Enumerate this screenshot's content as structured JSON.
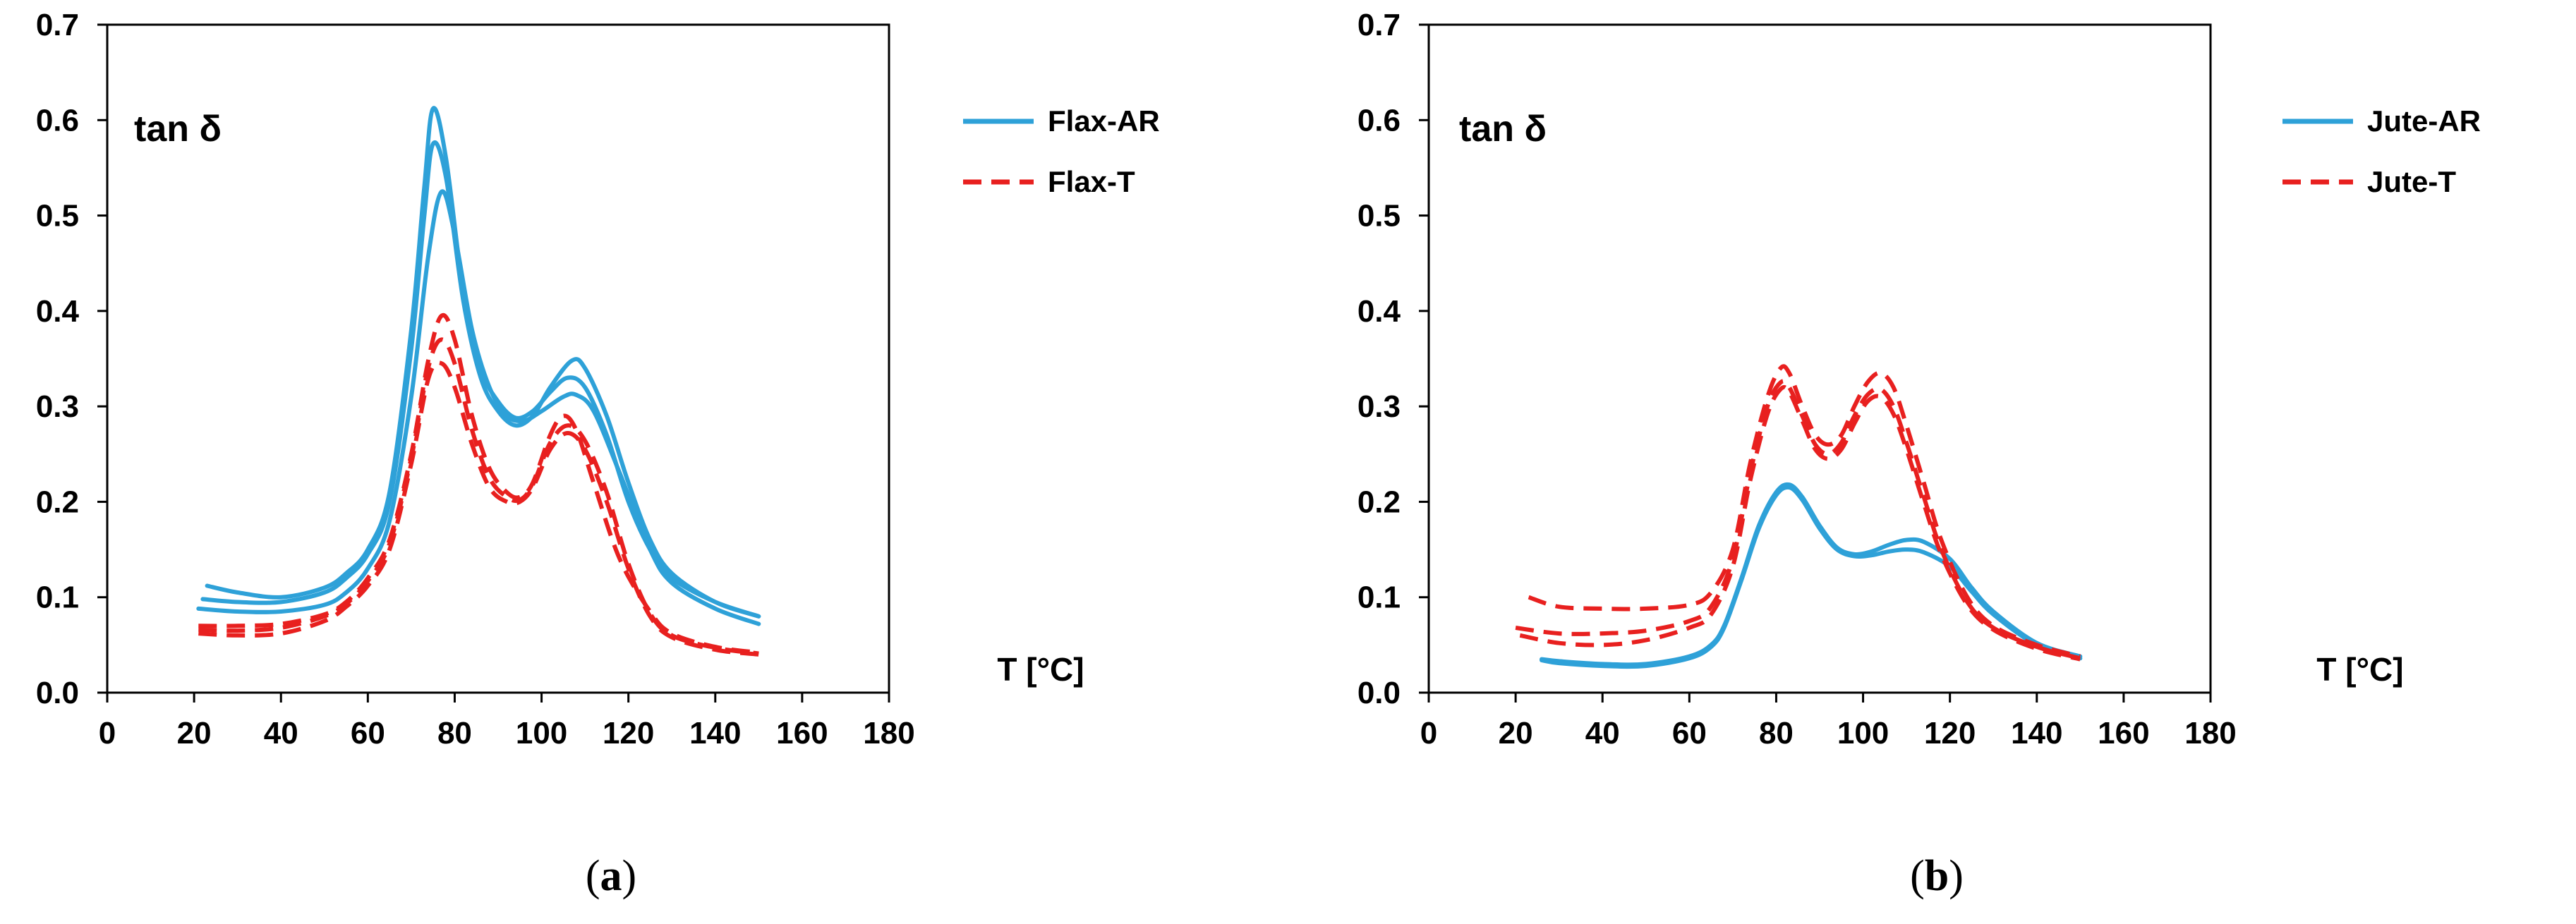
{
  "chart_data": [
    {
      "type": "line",
      "panel_label": "a",
      "ylabel": "tan δ",
      "xlabel": "T [°C]",
      "xlim": [
        0,
        180
      ],
      "ylim": [
        0,
        0.7
      ],
      "xticks": [
        0,
        20,
        40,
        60,
        80,
        100,
        120,
        140,
        160,
        180
      ],
      "yticks": [
        "0.0",
        "0.1",
        "0.2",
        "0.3",
        "0.4",
        "0.5",
        "0.6",
        "0.7"
      ],
      "legend": [
        "Flax-AR",
        "Flax-T"
      ],
      "series": [
        {
          "name": "Flax-AR",
          "color": "#2ea1d8",
          "dash": false,
          "x": [
            23,
            30,
            40,
            50,
            55,
            60,
            65,
            70,
            73,
            75,
            78,
            82,
            86,
            90,
            94,
            98,
            102,
            106,
            110,
            115,
            120,
            125,
            130,
            140,
            150
          ],
          "y": [
            0.112,
            0.105,
            0.1,
            0.11,
            0.125,
            0.15,
            0.21,
            0.38,
            0.53,
            0.612,
            0.56,
            0.42,
            0.34,
            0.305,
            0.288,
            0.295,
            0.315,
            0.33,
            0.32,
            0.27,
            0.2,
            0.15,
            0.12,
            0.095,
            0.08
          ]
        },
        {
          "name": "Flax-AR",
          "color": "#2ea1d8",
          "dash": false,
          "x": [
            22,
            30,
            40,
            50,
            55,
            60,
            65,
            70,
            73,
            75,
            78,
            82,
            86,
            90,
            94,
            98,
            102,
            107,
            110,
            115,
            120,
            125,
            130,
            140,
            150
          ],
          "y": [
            0.098,
            0.095,
            0.095,
            0.105,
            0.12,
            0.145,
            0.2,
            0.36,
            0.5,
            0.575,
            0.54,
            0.41,
            0.33,
            0.295,
            0.28,
            0.29,
            0.32,
            0.348,
            0.34,
            0.29,
            0.22,
            0.16,
            0.125,
            0.095,
            0.08
          ]
        },
        {
          "name": "Flax-AR",
          "color": "#2ea1d8",
          "dash": false,
          "x": [
            21,
            30,
            40,
            50,
            55,
            60,
            65,
            70,
            74,
            77,
            80,
            84,
            88,
            92,
            96,
            100,
            105,
            108,
            112,
            118,
            125,
            130,
            140,
            150
          ],
          "y": [
            0.088,
            0.085,
            0.085,
            0.092,
            0.105,
            0.13,
            0.18,
            0.31,
            0.46,
            0.525,
            0.48,
            0.38,
            0.32,
            0.29,
            0.285,
            0.295,
            0.31,
            0.312,
            0.295,
            0.23,
            0.15,
            0.115,
            0.088,
            0.072
          ]
        },
        {
          "name": "Flax-T",
          "color": "#e8201f",
          "dash": true,
          "x": [
            21,
            30,
            40,
            50,
            55,
            60,
            65,
            70,
            74,
            77,
            80,
            84,
            88,
            92,
            95,
            98,
            102,
            105,
            108,
            112,
            118,
            125,
            130,
            140,
            150
          ],
          "y": [
            0.07,
            0.07,
            0.072,
            0.082,
            0.095,
            0.12,
            0.16,
            0.25,
            0.35,
            0.395,
            0.37,
            0.29,
            0.235,
            0.21,
            0.205,
            0.22,
            0.27,
            0.29,
            0.275,
            0.22,
            0.14,
            0.085,
            0.062,
            0.048,
            0.042
          ]
        },
        {
          "name": "Flax-T",
          "color": "#e8201f",
          "dash": true,
          "x": [
            21,
            30,
            40,
            50,
            55,
            60,
            65,
            70,
            74,
            77,
            80,
            84,
            88,
            92,
            95,
            98,
            102,
            106,
            110,
            115,
            120,
            125,
            130,
            140,
            150
          ],
          "y": [
            0.062,
            0.06,
            0.062,
            0.075,
            0.09,
            0.112,
            0.15,
            0.24,
            0.33,
            0.345,
            0.32,
            0.26,
            0.215,
            0.2,
            0.2,
            0.215,
            0.255,
            0.272,
            0.255,
            0.2,
            0.13,
            0.08,
            0.058,
            0.045,
            0.04
          ]
        },
        {
          "name": "Flax-T",
          "color": "#e8201f",
          "dash": true,
          "x": [
            21,
            30,
            40,
            50,
            55,
            60,
            65,
            70,
            74,
            77,
            80,
            84,
            88,
            92,
            95,
            98,
            102,
            106,
            110,
            115,
            120,
            125,
            130,
            140,
            150
          ],
          "y": [
            0.066,
            0.065,
            0.068,
            0.08,
            0.093,
            0.117,
            0.156,
            0.246,
            0.342,
            0.37,
            0.345,
            0.275,
            0.225,
            0.205,
            0.202,
            0.218,
            0.262,
            0.28,
            0.264,
            0.21,
            0.135,
            0.083,
            0.06,
            0.047,
            0.041
          ]
        }
      ]
    },
    {
      "type": "line",
      "panel_label": "b",
      "ylabel": "tan δ",
      "xlabel": "T [°C]",
      "xlim": [
        0,
        180
      ],
      "ylim": [
        0,
        0.7
      ],
      "xticks": [
        0,
        20,
        40,
        60,
        80,
        100,
        120,
        140,
        160,
        180
      ],
      "yticks": [
        "0.0",
        "0.1",
        "0.2",
        "0.3",
        "0.4",
        "0.5",
        "0.6",
        "0.7"
      ],
      "legend": [
        "Jute-AR",
        "Jute-T"
      ],
      "series": [
        {
          "name": "Jute-AR",
          "color": "#2ea1d8",
          "dash": false,
          "x": [
            26,
            30,
            40,
            50,
            60,
            65,
            68,
            72,
            76,
            80,
            83,
            86,
            90,
            94,
            98,
            102,
            106,
            110,
            114,
            120,
            125,
            130,
            140,
            150
          ],
          "y": [
            0.035,
            0.033,
            0.03,
            0.03,
            0.038,
            0.05,
            0.07,
            0.12,
            0.175,
            0.21,
            0.218,
            0.205,
            0.175,
            0.152,
            0.145,
            0.148,
            0.155,
            0.16,
            0.158,
            0.14,
            0.11,
            0.085,
            0.052,
            0.038
          ]
        },
        {
          "name": "Jute-AR",
          "color": "#2ea1d8",
          "dash": false,
          "x": [
            26,
            30,
            40,
            50,
            60,
            65,
            68,
            72,
            76,
            80,
            83,
            86,
            90,
            94,
            98,
            102,
            106,
            110,
            114,
            120,
            125,
            130,
            140,
            150
          ],
          "y": [
            0.034,
            0.031,
            0.028,
            0.028,
            0.036,
            0.048,
            0.068,
            0.118,
            0.172,
            0.207,
            0.215,
            0.202,
            0.172,
            0.15,
            0.143,
            0.144,
            0.148,
            0.15,
            0.147,
            0.132,
            0.106,
            0.082,
            0.05,
            0.036
          ]
        },
        {
          "name": "Jute-T",
          "color": "#e8201f",
          "dash": true,
          "x": [
            23,
            30,
            40,
            50,
            60,
            65,
            70,
            74,
            78,
            81,
            83,
            86,
            89,
            92,
            95,
            98,
            101,
            104,
            107,
            110,
            114,
            118,
            124,
            130,
            140,
            150
          ],
          "y": [
            0.1,
            0.09,
            0.088,
            0.088,
            0.092,
            0.105,
            0.15,
            0.24,
            0.31,
            0.34,
            0.335,
            0.3,
            0.27,
            0.26,
            0.27,
            0.3,
            0.325,
            0.335,
            0.32,
            0.28,
            0.22,
            0.16,
            0.1,
            0.07,
            0.05,
            0.038
          ]
        },
        {
          "name": "Jute-T",
          "color": "#e8201f",
          "dash": true,
          "x": [
            20,
            30,
            40,
            50,
            60,
            65,
            70,
            74,
            78,
            81,
            83,
            86,
            89,
            92,
            95,
            98,
            101,
            104,
            107,
            110,
            114,
            118,
            124,
            130,
            140,
            150
          ],
          "y": [
            0.068,
            0.062,
            0.062,
            0.065,
            0.075,
            0.09,
            0.14,
            0.23,
            0.3,
            0.325,
            0.32,
            0.29,
            0.26,
            0.25,
            0.262,
            0.29,
            0.312,
            0.318,
            0.3,
            0.262,
            0.205,
            0.15,
            0.095,
            0.068,
            0.048,
            0.036
          ]
        },
        {
          "name": "Jute-T",
          "color": "#e8201f",
          "dash": true,
          "x": [
            21,
            30,
            40,
            50,
            60,
            65,
            70,
            74,
            78,
            81,
            83,
            86,
            89,
            92,
            95,
            98,
            101,
            104,
            107,
            110,
            114,
            118,
            124,
            130,
            140,
            150
          ],
          "y": [
            0.06,
            0.052,
            0.05,
            0.055,
            0.068,
            0.082,
            0.132,
            0.222,
            0.292,
            0.318,
            0.315,
            0.285,
            0.255,
            0.245,
            0.255,
            0.282,
            0.305,
            0.31,
            0.292,
            0.255,
            0.198,
            0.145,
            0.092,
            0.066,
            0.046,
            0.035
          ]
        }
      ]
    }
  ]
}
